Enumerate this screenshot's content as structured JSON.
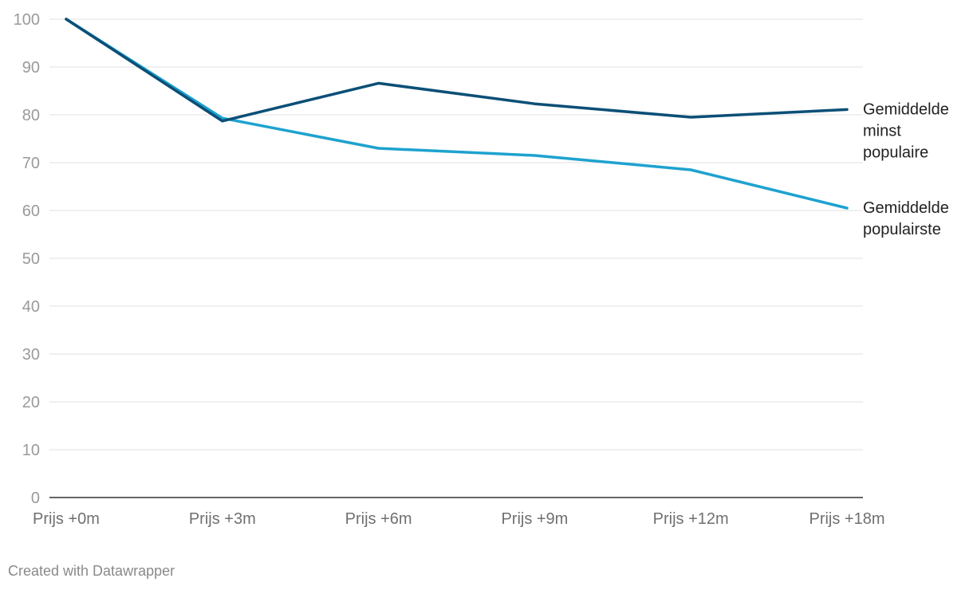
{
  "chart_data": {
    "type": "line",
    "categories": [
      "Prijs +0m",
      "Prijs +3m",
      "Prijs +6m",
      "Prijs +9m",
      "Prijs +12m",
      "Prijs +18m"
    ],
    "ylim": [
      0,
      100
    ],
    "yticks": [
      0,
      10,
      20,
      30,
      40,
      50,
      60,
      70,
      80,
      90,
      100
    ],
    "grid": true,
    "legend": "direct labels at line ends",
    "series": [
      {
        "name": "Gemiddelde minst populaire",
        "label_lines": [
          "Gemiddelde",
          "minst",
          "populaire"
        ],
        "color": "#0b4f77",
        "values": [
          100,
          78.7,
          86.6,
          82.3,
          79.5,
          81.1
        ]
      },
      {
        "name": "Gemiddelde populairste",
        "label_lines": [
          "Gemiddelde",
          "populairste"
        ],
        "color": "#1ea2cf",
        "values": [
          100,
          79.3,
          73.0,
          71.5,
          68.5,
          60.5
        ]
      }
    ]
  },
  "footer": {
    "credit": "Created with Datawrapper"
  }
}
